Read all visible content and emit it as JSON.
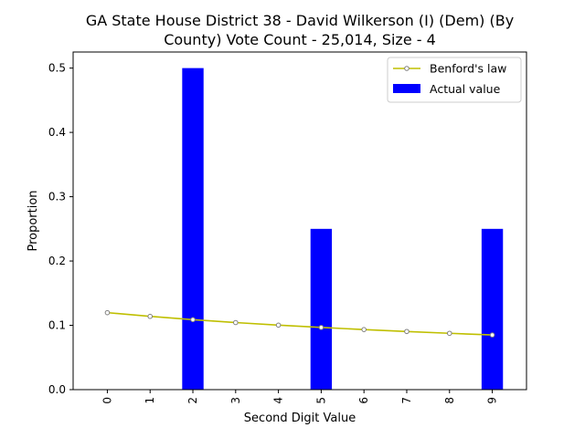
{
  "chart_data": {
    "type": "bar",
    "title_lines": [
      "GA State House District 38 - David Wilkerson (I) (Dem) (By",
      "County) Vote Count - 25,014, Size - 4"
    ],
    "xlabel": "Second Digit Value",
    "ylabel": "Proportion",
    "categories": [
      "0",
      "1",
      "2",
      "3",
      "4",
      "5",
      "6",
      "7",
      "8",
      "9"
    ],
    "ylim": [
      0,
      0.525
    ],
    "yticks": [
      "0.0",
      "0.1",
      "0.2",
      "0.3",
      "0.4",
      "0.5"
    ],
    "grid": false,
    "legend_position": "top-right",
    "series": [
      {
        "name": "Benford's law",
        "kind": "line",
        "color": "#bfbf00",
        "marker_color": "#bfbf00",
        "values": [
          0.1197,
          0.1139,
          0.1088,
          0.1043,
          0.1003,
          0.0967,
          0.0934,
          0.0904,
          0.0876,
          0.085
        ]
      },
      {
        "name": "Actual value",
        "kind": "bar",
        "color": "#0000ff",
        "values": [
          0,
          0,
          0.5,
          0,
          0,
          0.25,
          0,
          0,
          0,
          0.25
        ]
      }
    ]
  }
}
